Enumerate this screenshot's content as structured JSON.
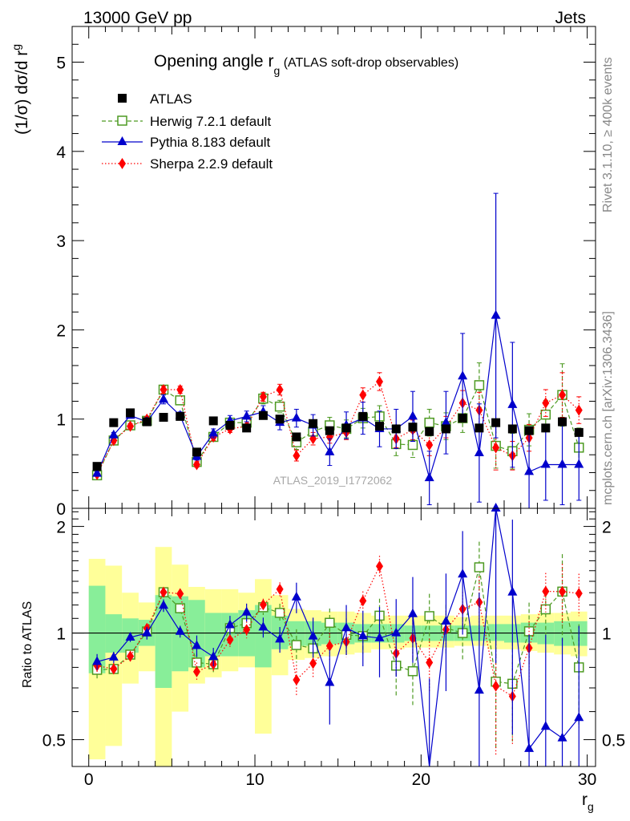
{
  "header": {
    "energy_label": "13000 GeV pp",
    "process_label": "Jets",
    "rivet_label": "Rivet 3.1.10, ≥ 400k events",
    "mcplots_label": "mcplots.cern.ch [arXiv:1306.3436]",
    "analysis_id": "ATLAS_2019_I1772062"
  },
  "chart_data": [
    {
      "type": "scatter",
      "title": "Opening angle r_g (ATLAS soft-drop observables)",
      "title_main": "Opening angle r",
      "title_sub": "g",
      "title_tail": " (ATLAS soft-drop observables)",
      "ylabel": "(1/σ) dσ/d r_g",
      "ylabel_main": "(1/σ) dσ/d r",
      "ylabel_sub": "g",
      "xlabel": "r_g",
      "xlabel_main": "r",
      "xlabel_sub": "g",
      "xlim": [
        -1,
        30.5
      ],
      "ylim": [
        0,
        5.4
      ],
      "xticks": [
        0,
        10,
        20,
        30
      ],
      "xtick_labels": [
        "0",
        "10",
        "20",
        "30"
      ],
      "yticks": [
        0,
        1,
        2,
        3,
        4,
        5
      ],
      "ytick_labels": [
        "0",
        "1",
        "2",
        "3",
        "4",
        "5"
      ],
      "x": [
        0.5,
        1.5,
        2.5,
        3.5,
        4.5,
        5.5,
        6.5,
        7.5,
        8.5,
        9.5,
        10.5,
        11.5,
        12.5,
        13.5,
        14.5,
        15.5,
        16.5,
        17.5,
        18.5,
        19.5,
        20.5,
        21.5,
        22.5,
        23.5,
        24.5,
        25.5,
        26.5,
        27.5,
        28.5,
        29.5
      ],
      "legend": [
        "ATLAS",
        "Herwig 7.2.1 default",
        "Pythia 8.183 default",
        "Sherpa 2.2.9 default"
      ],
      "series": [
        {
          "name": "ATLAS",
          "color": "#000000",
          "marker": "square",
          "line": "none",
          "values": [
            0.47,
            0.96,
            1.07,
            0.97,
            1.02,
            1.03,
            0.63,
            0.98,
            0.93,
            0.9,
            1.04,
            1.0,
            0.8,
            0.95,
            0.87,
            0.9,
            1.03,
            0.92,
            0.89,
            0.91,
            0.86,
            0.89,
            1.01,
            0.9,
            0.96,
            0.89,
            0.87,
            0.9,
            0.97,
            0.85
          ]
        },
        {
          "name": "Herwig 7.2.1 default",
          "color": "#4d9a22",
          "marker": "open-square",
          "line": "dashed",
          "values": [
            0.37,
            0.76,
            0.93,
            0.98,
            1.33,
            1.21,
            0.52,
            0.8,
            0.96,
            0.96,
            1.23,
            1.14,
            0.74,
            0.86,
            0.93,
            0.89,
            1.01,
            1.03,
            0.72,
            0.71,
            0.96,
            0.92,
            1.01,
            1.38,
            0.7,
            0.64,
            0.88,
            1.05,
            1.27,
            0.68
          ],
          "errors": [
            0.02,
            0.03,
            0.03,
            0.03,
            0.04,
            0.04,
            0.03,
            0.04,
            0.05,
            0.05,
            0.06,
            0.07,
            0.08,
            0.08,
            0.09,
            0.1,
            0.11,
            0.12,
            0.13,
            0.14,
            0.15,
            0.15,
            0.16,
            0.25,
            0.25,
            0.2,
            0.18,
            0.16,
            0.35,
            0.22
          ]
        },
        {
          "name": "Pythia 8.183 default",
          "color": "#0000cc",
          "marker": "triangle",
          "line": "solid",
          "values": [
            0.39,
            0.82,
            1.04,
            0.97,
            1.22,
            1.04,
            0.58,
            0.84,
            0.98,
            1.03,
            1.08,
            0.96,
            1.01,
            0.93,
            0.63,
            0.93,
            1.01,
            0.89,
            0.89,
            1.03,
            0.34,
            0.96,
            1.48,
            0.62,
            2.16,
            1.16,
            0.41,
            0.49,
            0.49,
            0.49
          ],
          "errors": [
            0.02,
            0.03,
            0.03,
            0.04,
            0.05,
            0.04,
            0.04,
            0.05,
            0.06,
            0.06,
            0.07,
            0.08,
            0.1,
            0.12,
            0.15,
            0.15,
            0.18,
            0.2,
            0.22,
            0.28,
            0.3,
            0.35,
            0.48,
            0.55,
            1.37,
            0.7,
            0.45,
            0.4,
            0.45,
            0.4
          ]
        },
        {
          "name": "Sherpa 2.2.9 default",
          "color": "#ff0000",
          "marker": "diamond",
          "line": "dotted",
          "values": [
            0.38,
            0.76,
            0.92,
            1.0,
            1.33,
            1.33,
            0.49,
            0.8,
            0.89,
            0.92,
            1.25,
            1.33,
            0.59,
            0.78,
            0.8,
            0.85,
            1.27,
            1.42,
            0.78,
            0.88,
            0.71,
            0.91,
            1.18,
            1.1,
            0.68,
            0.59,
            0.79,
            1.18,
            1.27,
            1.1
          ],
          "errors": [
            0.02,
            0.03,
            0.03,
            0.03,
            0.04,
            0.04,
            0.03,
            0.04,
            0.04,
            0.05,
            0.05,
            0.06,
            0.06,
            0.07,
            0.07,
            0.08,
            0.08,
            0.1,
            0.1,
            0.11,
            0.12,
            0.12,
            0.14,
            0.2,
            0.25,
            0.16,
            0.15,
            0.15,
            0.25,
            0.15
          ]
        }
      ]
    },
    {
      "type": "scatter",
      "ylabel": "Ratio to ATLAS",
      "ylim": [
        0.42,
        2.25
      ],
      "yscale": "log",
      "yticks": [
        0.5,
        1,
        2
      ],
      "ytick_labels": [
        "0.5",
        "1",
        "2"
      ],
      "reference_line": 1,
      "band_stat": [
        [
          0.77,
          1.36
        ],
        [
          0.88,
          1.13
        ],
        [
          0.88,
          1.1
        ],
        [
          0.92,
          1.09
        ],
        [
          0.7,
          1.28
        ],
        [
          0.78,
          1.27
        ],
        [
          0.8,
          1.24
        ],
        [
          0.86,
          1.14
        ],
        [
          0.86,
          1.14
        ],
        [
          0.86,
          1.16
        ],
        [
          0.8,
          1.2
        ],
        [
          0.9,
          1.12
        ],
        [
          0.92,
          1.08
        ],
        [
          0.92,
          1.08
        ],
        [
          0.93,
          1.07
        ],
        [
          0.93,
          1.07
        ],
        [
          0.94,
          1.06
        ],
        [
          0.94,
          1.06
        ],
        [
          0.94,
          1.06
        ],
        [
          0.95,
          1.05
        ],
        [
          0.95,
          1.05
        ],
        [
          0.95,
          1.05
        ],
        [
          0.95,
          1.05
        ],
        [
          0.95,
          1.05
        ],
        [
          0.95,
          1.06
        ],
        [
          0.94,
          1.06
        ],
        [
          0.94,
          1.07
        ],
        [
          0.93,
          1.07
        ],
        [
          0.92,
          1.08
        ],
        [
          0.92,
          1.08
        ]
      ],
      "band_total": [
        [
          0.44,
          1.62
        ],
        [
          0.48,
          1.55
        ],
        [
          0.72,
          1.3
        ],
        [
          0.78,
          1.22
        ],
        [
          0.4,
          1.75
        ],
        [
          0.6,
          1.56
        ],
        [
          0.72,
          1.35
        ],
        [
          0.75,
          1.33
        ],
        [
          0.78,
          1.33
        ],
        [
          0.8,
          1.3
        ],
        [
          0.52,
          1.42
        ],
        [
          0.76,
          1.28
        ],
        [
          0.84,
          1.17
        ],
        [
          0.85,
          1.16
        ],
        [
          0.86,
          1.15
        ],
        [
          0.87,
          1.15
        ],
        [
          0.88,
          1.14
        ],
        [
          0.9,
          1.12
        ],
        [
          0.9,
          1.12
        ],
        [
          0.91,
          1.12
        ],
        [
          0.91,
          1.12
        ],
        [
          0.91,
          1.12
        ],
        [
          0.92,
          1.11
        ],
        [
          0.92,
          1.12
        ],
        [
          0.9,
          1.12
        ],
        [
          0.9,
          1.12
        ],
        [
          0.89,
          1.13
        ],
        [
          0.88,
          1.14
        ],
        [
          0.87,
          1.14
        ],
        [
          0.86,
          1.15
        ]
      ]
    }
  ]
}
